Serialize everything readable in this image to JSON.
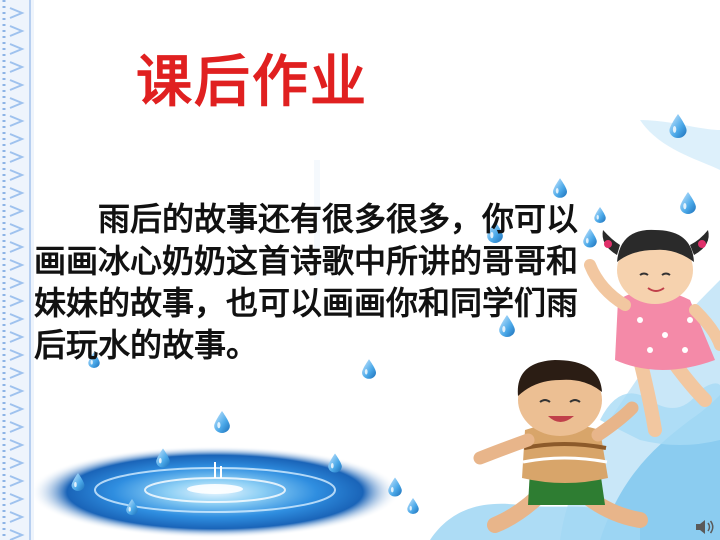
{
  "slide": {
    "title": "课后作业",
    "body": "雨后的故事还有很多很多，你可以画画冰心奶奶这首诗歌中所讲的哥哥和妹妹的故事，也可以画画你和同学们雨后玩水的故事。"
  },
  "icons": {
    "border": "dotted-frame-border",
    "drops": "water-drop-icon",
    "pool": "water-ripple-pool",
    "kids": "children-playing-in-water",
    "corner": "speaker-icon"
  },
  "colors": {
    "title": "#e02020",
    "text": "#111111",
    "drop": "#4aa8e8",
    "water": "#1e78d0",
    "border": "#8db4e6"
  }
}
